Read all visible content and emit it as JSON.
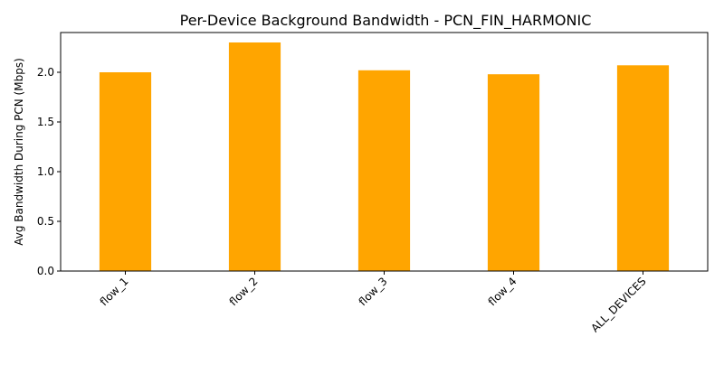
{
  "chart_data": {
    "type": "bar",
    "title": "Per-Device Background Bandwidth - PCN_FIN_HARMONIC",
    "xlabel": "",
    "ylabel": "Avg Bandwidth During PCN (Mbps)",
    "categories": [
      "flow_1",
      "flow_2",
      "flow_3",
      "flow_4",
      "ALL_DEVICES"
    ],
    "values": [
      2.0,
      2.3,
      2.02,
      1.98,
      2.07
    ],
    "ylim": [
      0,
      2.4
    ],
    "yticks": [
      0.0,
      0.5,
      1.0,
      1.5,
      2.0
    ],
    "ytick_labels": [
      "0.0",
      "0.5",
      "1.0",
      "1.5",
      "2.0"
    ],
    "bar_color": "#ffa500",
    "grid": false,
    "legend": "none"
  }
}
